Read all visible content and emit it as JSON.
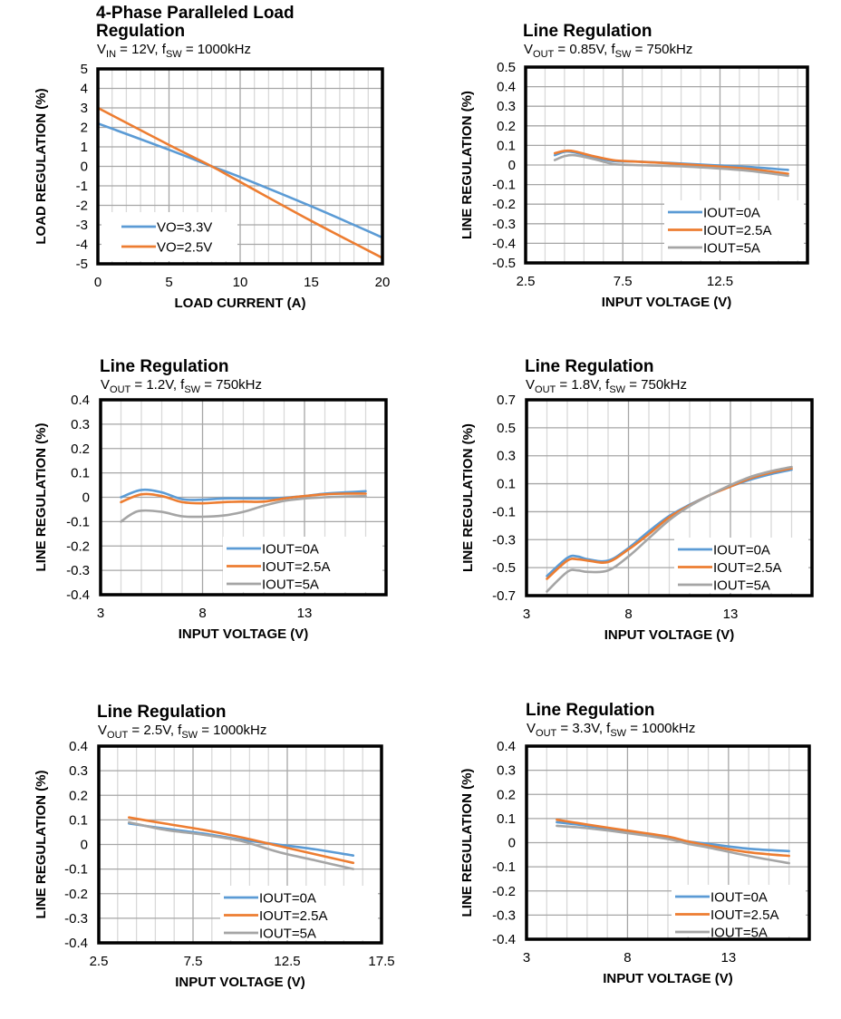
{
  "colors": {
    "series0": "#5B9BD5",
    "series1": "#ED7D31",
    "series2": "#A5A5A5",
    "grid_major": "#A6A6A6",
    "grid_minor": "#D9D9D9",
    "frame": "#000000"
  },
  "chart_data": [
    {
      "id": "load-regulation",
      "type": "line",
      "title_lines": [
        "4-Phase Paralleled Load",
        "Regulation"
      ],
      "subtitle": {
        "v_sym": "V",
        "v_sub": "IN",
        "v_rest": " = 12V, f",
        "f_sub": "SW",
        "f_rest": " = 1000kHz"
      },
      "xlabel": "LOAD CURRENT (A)",
      "ylabel": "LOAD REGULATION (%)",
      "xlim": [
        0,
        20
      ],
      "ylim": [
        -5,
        5
      ],
      "xticks": [
        0,
        5,
        10,
        15,
        20
      ],
      "xtick_labels": [
        "0",
        "5",
        "10",
        "15",
        "20"
      ],
      "yticks": [
        5,
        4,
        3,
        2,
        1,
        0,
        -1,
        -2,
        -3,
        -4,
        -5
      ],
      "ytick_labels": [
        "5",
        "4",
        "3",
        "2",
        "1",
        "0",
        "-1",
        "-2",
        "-3",
        "-4",
        "-5"
      ],
      "grid": true,
      "legend_position": "bottom-left",
      "series": [
        {
          "name": "VO=3.3V",
          "x": [
            0,
            5,
            8,
            10,
            15,
            20
          ],
          "y": [
            2.2,
            0.85,
            0,
            -0.55,
            -2.05,
            -3.65
          ]
        },
        {
          "name": "VO=2.5V",
          "x": [
            0,
            5,
            8,
            10,
            15,
            20
          ],
          "y": [
            3.0,
            1.1,
            0,
            -0.8,
            -2.8,
            -4.7
          ]
        }
      ]
    },
    {
      "id": "line-reg-085",
      "type": "line",
      "title_lines": [
        "Line Regulation"
      ],
      "subtitle": {
        "v_sym": "V",
        "v_sub": "OUT",
        "v_rest": " = 0.85V, f",
        "f_sub": "SW",
        "f_rest": " = 750kHz"
      },
      "xlabel": "INPUT VOLTAGE (V)",
      "ylabel": "LINE REGULATION (%)",
      "xlim": [
        2.5,
        17
      ],
      "ylim": [
        -0.5,
        0.5
      ],
      "xticks": [
        2.5,
        7.5,
        12.5
      ],
      "xtick_labels": [
        "2.5",
        "7.5",
        "12.5"
      ],
      "yticks": [
        0.5,
        0.4,
        0.3,
        0.2,
        0.1,
        0,
        -0.1,
        -0.2,
        -0.3,
        -0.4,
        -0.5
      ],
      "ytick_labels": [
        "0.5",
        "0.4",
        "0.3",
        "0.2",
        "0.1",
        "0",
        "-0.1",
        "-0.2",
        "-0.3",
        "-0.4",
        "-0.5"
      ],
      "grid": true,
      "legend_position": "bottom-right",
      "series": [
        {
          "name": "IOUT=0A",
          "x": [
            4,
            4.5,
            5,
            6,
            7,
            8,
            10,
            12,
            14,
            16
          ],
          "y": [
            0.05,
            0.068,
            0.065,
            0.04,
            0.02,
            0.018,
            0.01,
            0.0,
            -0.01,
            -0.025
          ]
        },
        {
          "name": "IOUT=2.5A",
          "x": [
            4,
            4.5,
            5,
            6,
            7,
            8,
            10,
            12,
            14,
            16
          ],
          "y": [
            0.06,
            0.072,
            0.07,
            0.045,
            0.025,
            0.018,
            0.008,
            -0.005,
            -0.02,
            -0.045
          ]
        },
        {
          "name": "IOUT=5A",
          "x": [
            4,
            4.5,
            5,
            6,
            7,
            8,
            10,
            12,
            14,
            16
          ],
          "y": [
            0.025,
            0.045,
            0.05,
            0.03,
            0.005,
            0.0,
            -0.005,
            -0.015,
            -0.03,
            -0.055
          ]
        }
      ]
    },
    {
      "id": "line-reg-12",
      "type": "line",
      "title_lines": [
        "Line Regulation"
      ],
      "subtitle": {
        "v_sym": "V",
        "v_sub": "OUT",
        "v_rest": " = 1.2V, f",
        "f_sub": "SW",
        "f_rest": " = 750kHz"
      },
      "xlabel": "INPUT VOLTAGE (V)",
      "ylabel": "LINE REGULATION (%)",
      "xlim": [
        3,
        17
      ],
      "ylim": [
        -0.4,
        0.4
      ],
      "xticks": [
        3,
        8,
        13
      ],
      "xtick_labels": [
        "3",
        "8",
        "13"
      ],
      "yticks": [
        0.4,
        0.3,
        0.2,
        0.1,
        0,
        -0.1,
        -0.2,
        -0.3,
        -0.4
      ],
      "ytick_labels": [
        "0.4",
        "0.3",
        "0.2",
        "0.1",
        "0",
        "-0.1",
        "-0.2",
        "-0.3",
        "-0.4"
      ],
      "grid": true,
      "legend_position": "bottom-right",
      "series": [
        {
          "name": "IOUT=0A",
          "x": [
            4,
            5,
            6,
            7,
            8,
            9,
            10,
            11,
            12,
            13,
            14,
            15,
            16
          ],
          "y": [
            0.0,
            0.03,
            0.02,
            -0.008,
            -0.01,
            -0.005,
            -0.005,
            -0.005,
            -0.002,
            0.005,
            0.015,
            0.02,
            0.025
          ]
        },
        {
          "name": "IOUT=2.5A",
          "x": [
            4,
            5,
            6,
            7,
            8,
            9,
            10,
            11,
            12,
            13,
            14,
            15,
            16
          ],
          "y": [
            -0.02,
            0.012,
            0.005,
            -0.02,
            -0.025,
            -0.02,
            -0.018,
            -0.018,
            -0.005,
            0.005,
            0.012,
            0.015,
            0.015
          ]
        },
        {
          "name": "IOUT=5A",
          "x": [
            4,
            4.5,
            5,
            6,
            7,
            8,
            9,
            10,
            11,
            12,
            13,
            14,
            15,
            16
          ],
          "y": [
            -0.1,
            -0.07,
            -0.055,
            -0.06,
            -0.078,
            -0.08,
            -0.075,
            -0.06,
            -0.035,
            -0.015,
            -0.005,
            0.0,
            0.003,
            0.005
          ]
        }
      ]
    },
    {
      "id": "line-reg-18",
      "type": "line",
      "title_lines": [
        "Line Regulation"
      ],
      "subtitle": {
        "v_sym": "V",
        "v_sub": "OUT",
        "v_rest": " = 1.8V, f",
        "f_sub": "SW",
        "f_rest": " = 750kHz"
      },
      "xlabel": "INPUT VOLTAGE (V)",
      "ylabel": "LINE REGULATION (%)",
      "xlim": [
        3,
        17
      ],
      "ylim": [
        -0.7,
        0.7
      ],
      "xticks": [
        3,
        8,
        13
      ],
      "xtick_labels": [
        "3",
        "8",
        "13"
      ],
      "yticks": [
        0.7,
        0.5,
        0.3,
        0.1,
        -0.1,
        -0.3,
        -0.5,
        -0.7
      ],
      "ytick_labels": [
        "0.7",
        "0.5",
        "0.3",
        "0.1",
        "-0.1",
        "-0.3",
        "-0.5",
        "-0.7"
      ],
      "grid": true,
      "legend_position": "bottom-right",
      "series": [
        {
          "name": "IOUT=0A",
          "x": [
            4,
            5,
            5.5,
            6,
            7,
            8,
            9,
            10,
            11,
            12,
            13,
            14,
            15,
            16
          ],
          "y": [
            -0.56,
            -0.43,
            -0.42,
            -0.44,
            -0.45,
            -0.36,
            -0.24,
            -0.13,
            -0.05,
            0.02,
            0.08,
            0.13,
            0.17,
            0.2
          ]
        },
        {
          "name": "IOUT=2.5A",
          "x": [
            4,
            5,
            5.5,
            6,
            7,
            8,
            9,
            10,
            11,
            12,
            13,
            14,
            15,
            16
          ],
          "y": [
            -0.58,
            -0.45,
            -0.44,
            -0.45,
            -0.46,
            -0.37,
            -0.26,
            -0.14,
            -0.055,
            0.02,
            0.08,
            0.14,
            0.18,
            0.21
          ]
        },
        {
          "name": "IOUT=5A",
          "x": [
            4,
            5,
            5.5,
            6,
            7,
            8,
            9,
            10,
            11,
            12,
            13,
            14,
            15,
            16
          ],
          "y": [
            -0.67,
            -0.53,
            -0.52,
            -0.53,
            -0.52,
            -0.42,
            -0.29,
            -0.16,
            -0.06,
            0.02,
            0.09,
            0.15,
            0.19,
            0.22
          ]
        }
      ]
    },
    {
      "id": "line-reg-25",
      "type": "line",
      "title_lines": [
        "Line Regulation"
      ],
      "subtitle": {
        "v_sym": "V",
        "v_sub": "OUT",
        "v_rest": " = 2.5V, f",
        "f_sub": "SW",
        "f_rest": " = 1000kHz"
      },
      "xlabel": "INPUT VOLTAGE (V)",
      "ylabel": "LINE REGULATION (%)",
      "xlim": [
        2.5,
        17.5
      ],
      "ylim": [
        -0.4,
        0.4
      ],
      "xticks": [
        2.5,
        7.5,
        12.5,
        17.5
      ],
      "xtick_labels": [
        "2.5",
        "7.5",
        "12.5",
        "17.5"
      ],
      "yticks": [
        0.4,
        0.3,
        0.2,
        0.1,
        0,
        -0.1,
        -0.2,
        -0.3,
        -0.4
      ],
      "ytick_labels": [
        "0.4",
        "0.3",
        "0.2",
        "0.1",
        "0",
        "-0.1",
        "-0.2",
        "-0.3",
        "-0.4"
      ],
      "grid": true,
      "legend_position": "bottom-right",
      "series": [
        {
          "name": "IOUT=0A",
          "x": [
            4.1,
            6,
            8,
            10,
            12,
            14,
            16
          ],
          "y": [
            0.085,
            0.065,
            0.045,
            0.02,
            0.0,
            -0.02,
            -0.045
          ]
        },
        {
          "name": "IOUT=2.5A",
          "x": [
            4.1,
            6,
            8,
            10,
            12,
            14,
            16
          ],
          "y": [
            0.11,
            0.085,
            0.06,
            0.03,
            -0.005,
            -0.04,
            -0.075
          ]
        },
        {
          "name": "IOUT=5A",
          "x": [
            4.1,
            6,
            8,
            10,
            12,
            14,
            16
          ],
          "y": [
            0.09,
            0.06,
            0.04,
            0.015,
            -0.03,
            -0.065,
            -0.1
          ]
        }
      ]
    },
    {
      "id": "line-reg-33",
      "type": "line",
      "title_lines": [
        "Line Regulation"
      ],
      "subtitle": {
        "v_sym": "V",
        "v_sub": "OUT",
        "v_rest": " = 3.3V, f",
        "f_sub": "SW",
        "f_rest": " = 1000kHz"
      },
      "xlabel": "INPUT VOLTAGE (V)",
      "ylabel": "LINE REGULATION (%)",
      "xlim": [
        3,
        17
      ],
      "ylim": [
        -0.4,
        0.4
      ],
      "xticks": [
        3,
        8,
        13
      ],
      "xtick_labels": [
        "3",
        "8",
        "13"
      ],
      "yticks": [
        0.4,
        0.3,
        0.2,
        0.1,
        0,
        -0.1,
        -0.2,
        -0.3,
        -0.4
      ],
      "ytick_labels": [
        "0.4",
        "0.3",
        "0.2",
        "0.1",
        "0",
        "-0.1",
        "-0.2",
        "-0.3",
        "-0.4"
      ],
      "grid": true,
      "legend_position": "bottom-right",
      "series": [
        {
          "name": "IOUT=0A",
          "x": [
            4.5,
            6,
            8,
            10,
            11,
            12,
            14,
            16
          ],
          "y": [
            0.085,
            0.07,
            0.045,
            0.02,
            0.005,
            -0.005,
            -0.025,
            -0.035
          ]
        },
        {
          "name": "IOUT=2.5A",
          "x": [
            4.5,
            6,
            8,
            10,
            11,
            12,
            14,
            16
          ],
          "y": [
            0.095,
            0.075,
            0.05,
            0.025,
            0.005,
            -0.012,
            -0.04,
            -0.055
          ]
        },
        {
          "name": "IOUT=5A",
          "x": [
            4.5,
            6,
            8,
            10,
            11,
            12,
            14,
            16
          ],
          "y": [
            0.07,
            0.06,
            0.04,
            0.015,
            -0.005,
            -0.02,
            -0.055,
            -0.085
          ]
        }
      ]
    }
  ]
}
